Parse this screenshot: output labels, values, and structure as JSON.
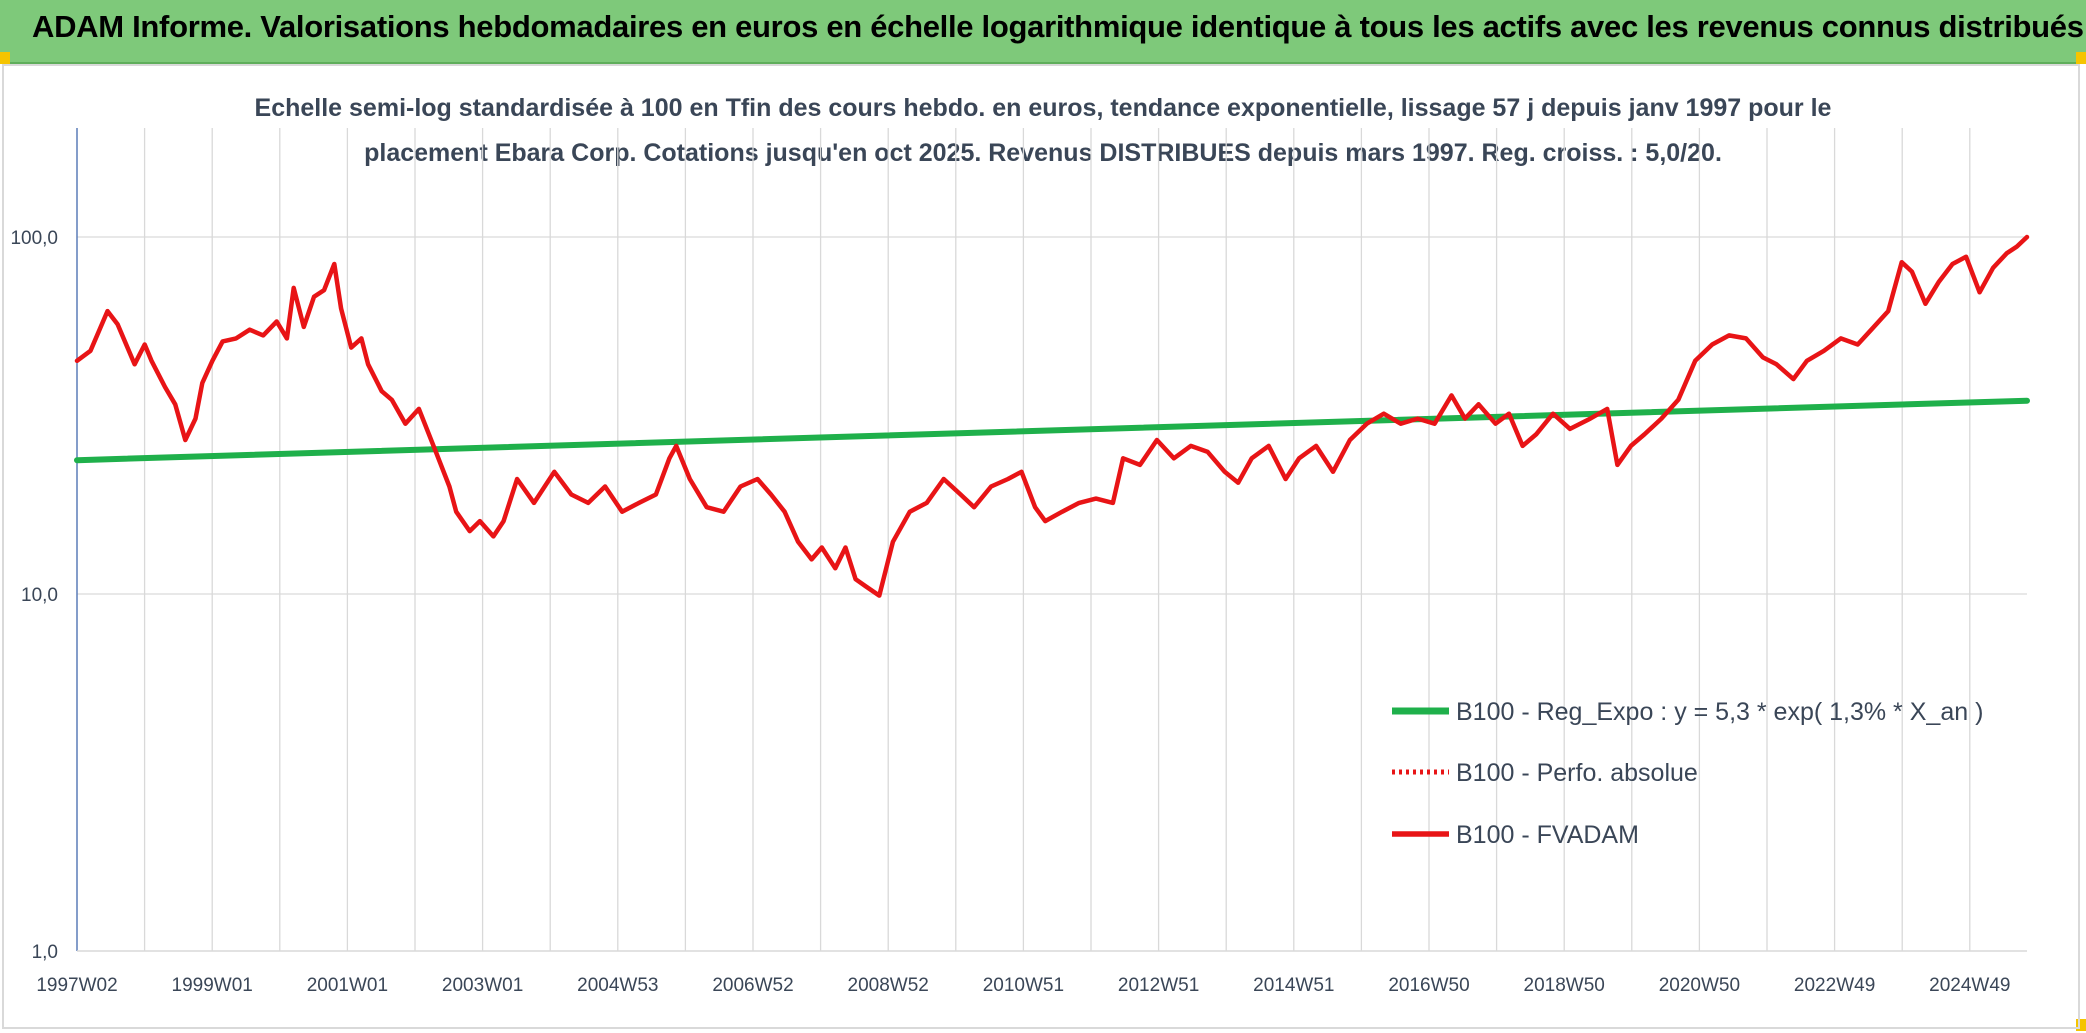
{
  "header": {
    "banner_title": "ADAM Informe. Valorisations hebdomadaires en euros en échelle logarithmique identique à tous les actifs avec les revenus connus distribués"
  },
  "colors": {
    "banner": "#7ec97a",
    "regression": "#1fb04b",
    "fvadam": "#e81416",
    "grid": "#d9d9d9",
    "text": "#3a4657"
  },
  "chart_data": {
    "type": "line",
    "title_line1": "Echelle semi-log standardisée à 100 en Tfin des cours hebdo. en euros, tendance exponentielle, lissage 57 j depuis janv 1997 pour le",
    "title_line2": "placement Ebara Corp. Cotations jusqu'en oct 2025. Revenus DISTRIBUES depuis mars 1997. Reg. croiss. : 5,0/20.",
    "x_tick_labels": [
      "1997W02",
      "1999W01",
      "2001W01",
      "2003W01",
      "2004W53",
      "2006W52",
      "2008W52",
      "2010W51",
      "2012W51",
      "2014W51",
      "2016W50",
      "2018W50",
      "2020W50",
      "2022W49",
      "2024W49"
    ],
    "y_tick_labels": [
      "1,0",
      "10,0",
      "100,0"
    ],
    "y_scale": "log",
    "ylim": [
      1,
      200
    ],
    "xlim": [
      1997.0,
      2025.8
    ],
    "grid": true,
    "legend_position": "bottom-right",
    "series": [
      {
        "name": "B100 - Reg_Expo : y = 5,3 * exp( 1,3% *  X_an )",
        "style": "solid-green",
        "x": [
          1997.0,
          2025.8
        ],
        "y": [
          23.7,
          34.8
        ]
      },
      {
        "name": "B100 - Perfo. absolue",
        "style": "dotted-red",
        "x": [],
        "y": []
      },
      {
        "name": "B100 - FVADAM",
        "style": "solid-red",
        "x": [
          1997.0,
          1997.2,
          1997.45,
          1997.6,
          1997.85,
          1998.0,
          1998.1,
          1998.3,
          1998.45,
          1998.6,
          1998.75,
          1998.85,
          1999.0,
          1999.15,
          1999.35,
          1999.55,
          1999.75,
          1999.95,
          2000.1,
          2000.2,
          2000.35,
          2000.5,
          2000.65,
          2000.8,
          2000.9,
          2001.05,
          2001.2,
          2001.3,
          2001.5,
          2001.65,
          2001.85,
          2002.05,
          2002.3,
          2002.5,
          2002.6,
          2002.8,
          2002.95,
          2003.15,
          2003.3,
          2003.5,
          2003.75,
          2004.05,
          2004.3,
          2004.55,
          2004.8,
          2005.05,
          2005.3,
          2005.55,
          2005.75,
          2005.85,
          2006.05,
          2006.3,
          2006.55,
          2006.8,
          2007.05,
          2007.25,
          2007.45,
          2007.65,
          2007.85,
          2008.0,
          2008.2,
          2008.35,
          2008.5,
          2008.65,
          2008.85,
          2009.05,
          2009.3,
          2009.55,
          2009.8,
          2010.05,
          2010.25,
          2010.5,
          2010.75,
          2010.95,
          2011.15,
          2011.3,
          2011.55,
          2011.8,
          2012.05,
          2012.3,
          2012.45,
          2012.7,
          2012.95,
          2013.2,
          2013.45,
          2013.7,
          2013.95,
          2014.15,
          2014.35,
          2014.6,
          2014.85,
          2015.05,
          2015.3,
          2015.55,
          2015.8,
          2016.05,
          2016.3,
          2016.55,
          2016.8,
          2017.05,
          2017.3,
          2017.5,
          2017.7,
          2017.95,
          2018.15,
          2018.35,
          2018.55,
          2018.8,
          2019.05,
          2019.35,
          2019.6,
          2019.75,
          2019.95,
          2020.15,
          2020.4,
          2020.65,
          2020.9,
          2021.15,
          2021.4,
          2021.65,
          2021.9,
          2022.1,
          2022.35,
          2022.55,
          2022.8,
          2023.05,
          2023.3,
          2023.5,
          2023.75,
          2023.95,
          2024.1,
          2024.3,
          2024.5,
          2024.7,
          2024.9,
          2025.1,
          2025.3,
          2025.5,
          2025.65,
          2025.8
        ],
        "y": [
          45,
          48,
          62,
          57,
          44,
          50,
          45,
          38,
          34,
          27,
          31,
          39,
          45,
          51,
          52,
          55,
          53,
          58,
          52,
          72,
          56,
          68,
          71,
          84,
          63,
          49,
          52,
          44,
          37,
          35,
          30,
          33,
          25,
          20,
          17,
          15,
          16,
          14.5,
          16,
          21,
          18,
          22,
          19,
          18,
          20,
          17,
          18,
          19,
          24,
          26,
          21,
          17.5,
          17,
          20,
          21,
          19,
          17,
          14,
          12.5,
          13.5,
          11.8,
          13.5,
          11,
          10.5,
          9.9,
          14,
          17,
          18,
          21,
          19,
          17.5,
          20,
          21,
          22,
          17.5,
          16,
          17,
          18,
          18.5,
          18,
          24,
          23,
          27,
          24,
          26,
          25,
          22,
          20.5,
          24,
          26,
          21,
          24,
          26,
          22,
          27,
          30,
          32,
          30,
          31,
          30,
          36,
          31,
          34,
          30,
          32,
          26,
          28,
          32,
          29,
          31,
          33,
          23,
          26,
          28,
          31,
          35,
          45,
          50,
          53,
          52,
          46,
          44,
          40,
          45,
          48,
          52,
          50,
          55,
          62,
          85,
          80,
          65,
          75,
          84,
          88,
          70,
          82,
          90,
          94,
          100
        ]
      }
    ]
  }
}
